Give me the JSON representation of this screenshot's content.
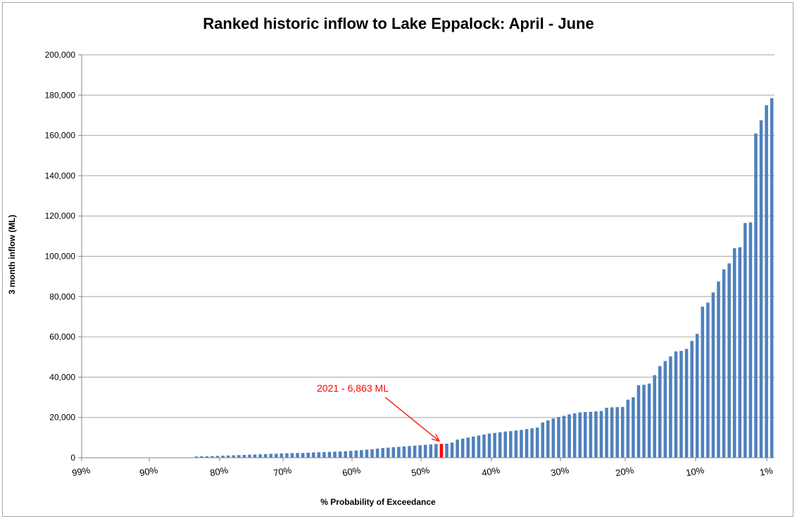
{
  "chart_data": {
    "type": "bar",
    "title": "Ranked historic inflow to Lake Eppalock: April - June",
    "xlabel": "% Probability of Exceedance",
    "ylabel": "3 month inflow (ML)",
    "ylim": [
      0,
      200000
    ],
    "yticks": [
      0,
      20000,
      40000,
      60000,
      80000,
      100000,
      120000,
      140000,
      160000,
      180000,
      200000
    ],
    "ytick_labels": [
      "0",
      "20,000",
      "40,000",
      "60,000",
      "80,000",
      "100,000",
      "120,000",
      "140,000",
      "160,000",
      "180,000",
      "200,000"
    ],
    "xticks": [
      {
        "label": "99%",
        "p": 99
      },
      {
        "label": "90%",
        "p": 90
      },
      {
        "label": "80%",
        "p": 80
      },
      {
        "label": "70%",
        "p": 70
      },
      {
        "label": "60%",
        "p": 60
      },
      {
        "label": "50%",
        "p": 50
      },
      {
        "label": "40%",
        "p": 40
      },
      {
        "label": "30%",
        "p": 30
      },
      {
        "label": "20%",
        "p": 20
      },
      {
        "label": "10%",
        "p": 10
      },
      {
        "label": "1%",
        "p": 1
      }
    ],
    "grid": true,
    "legend": "none",
    "colors": {
      "bars": "#4f81bd",
      "highlight": "#ff0000",
      "grid": "#a6a6a6",
      "axis": "#868686",
      "text": "#000000"
    },
    "series": [
      {
        "values": [
          0,
          0,
          0,
          0,
          0,
          0,
          0,
          0,
          0,
          0,
          0,
          0,
          0,
          0,
          0,
          0,
          0,
          0,
          0,
          0,
          0,
          600,
          700,
          700,
          800,
          900,
          1000,
          1100,
          1200,
          1300,
          1400,
          1500,
          1600,
          1700,
          1800,
          1900,
          2000,
          2100,
          2200,
          2300,
          2350,
          2400,
          2500,
          2600,
          2700,
          2800,
          2900,
          3000,
          3100,
          3200,
          3400,
          3600,
          3800,
          4000,
          4200,
          4500,
          4800,
          5000,
          5200,
          5400,
          5600,
          5800,
          6000,
          6200,
          6400,
          6600,
          6800,
          6863,
          7000,
          7500,
          9000,
          9500,
          10000,
          10500,
          11000,
          11500,
          12000,
          12300,
          12600,
          13000,
          13200,
          13500,
          13800,
          14200,
          14600,
          15000,
          17500,
          18500,
          19500,
          20200,
          20800,
          21500,
          22000,
          22500,
          22700,
          22800,
          23000,
          23200,
          24800,
          25000,
          25100,
          25200,
          28800,
          30000,
          36000,
          36200,
          36800,
          41000,
          45500,
          48000,
          50300,
          52800,
          53000,
          54000,
          58000,
          61500,
          75000,
          77000,
          82000,
          87500,
          93500,
          96500,
          104000,
          104500,
          116500,
          116800,
          161000,
          167500,
          175000,
          178500
        ]
      }
    ],
    "highlight_index": 67,
    "annotation": {
      "text": "2021 - 6,863 ML",
      "year": "2021",
      "value": 6863
    }
  }
}
